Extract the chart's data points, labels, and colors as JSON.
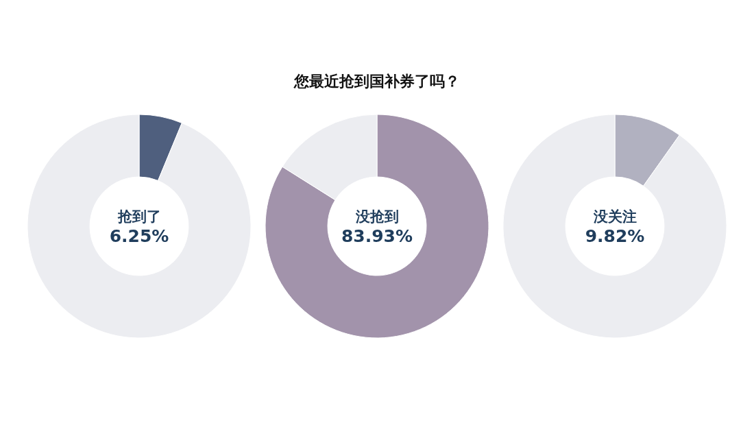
{
  "chart_data": [
    {
      "type": "donut",
      "categories": [
        "抢到了",
        null
      ],
      "values": [
        6.25,
        93.75
      ],
      "colors": [
        "#4f5f7e",
        "#ecedf1"
      ],
      "value_labels": [
        "6.25%",
        null
      ]
    },
    {
      "type": "donut",
      "title": "您最近抢到国补券了吗？",
      "categories": [
        "没抢到",
        null
      ],
      "values": [
        83.93,
        16.07
      ],
      "colors": [
        "#a293ab",
        "#ecedf1"
      ],
      "value_labels": [
        "83.93%",
        null
      ]
    },
    {
      "type": "donut",
      "categories": [
        "没关注",
        null
      ],
      "values": [
        9.82,
        90.18
      ],
      "colors": [
        "#b1b1c0",
        "#ecedf1"
      ],
      "value_labels": [
        "9.82%",
        null
      ]
    }
  ]
}
